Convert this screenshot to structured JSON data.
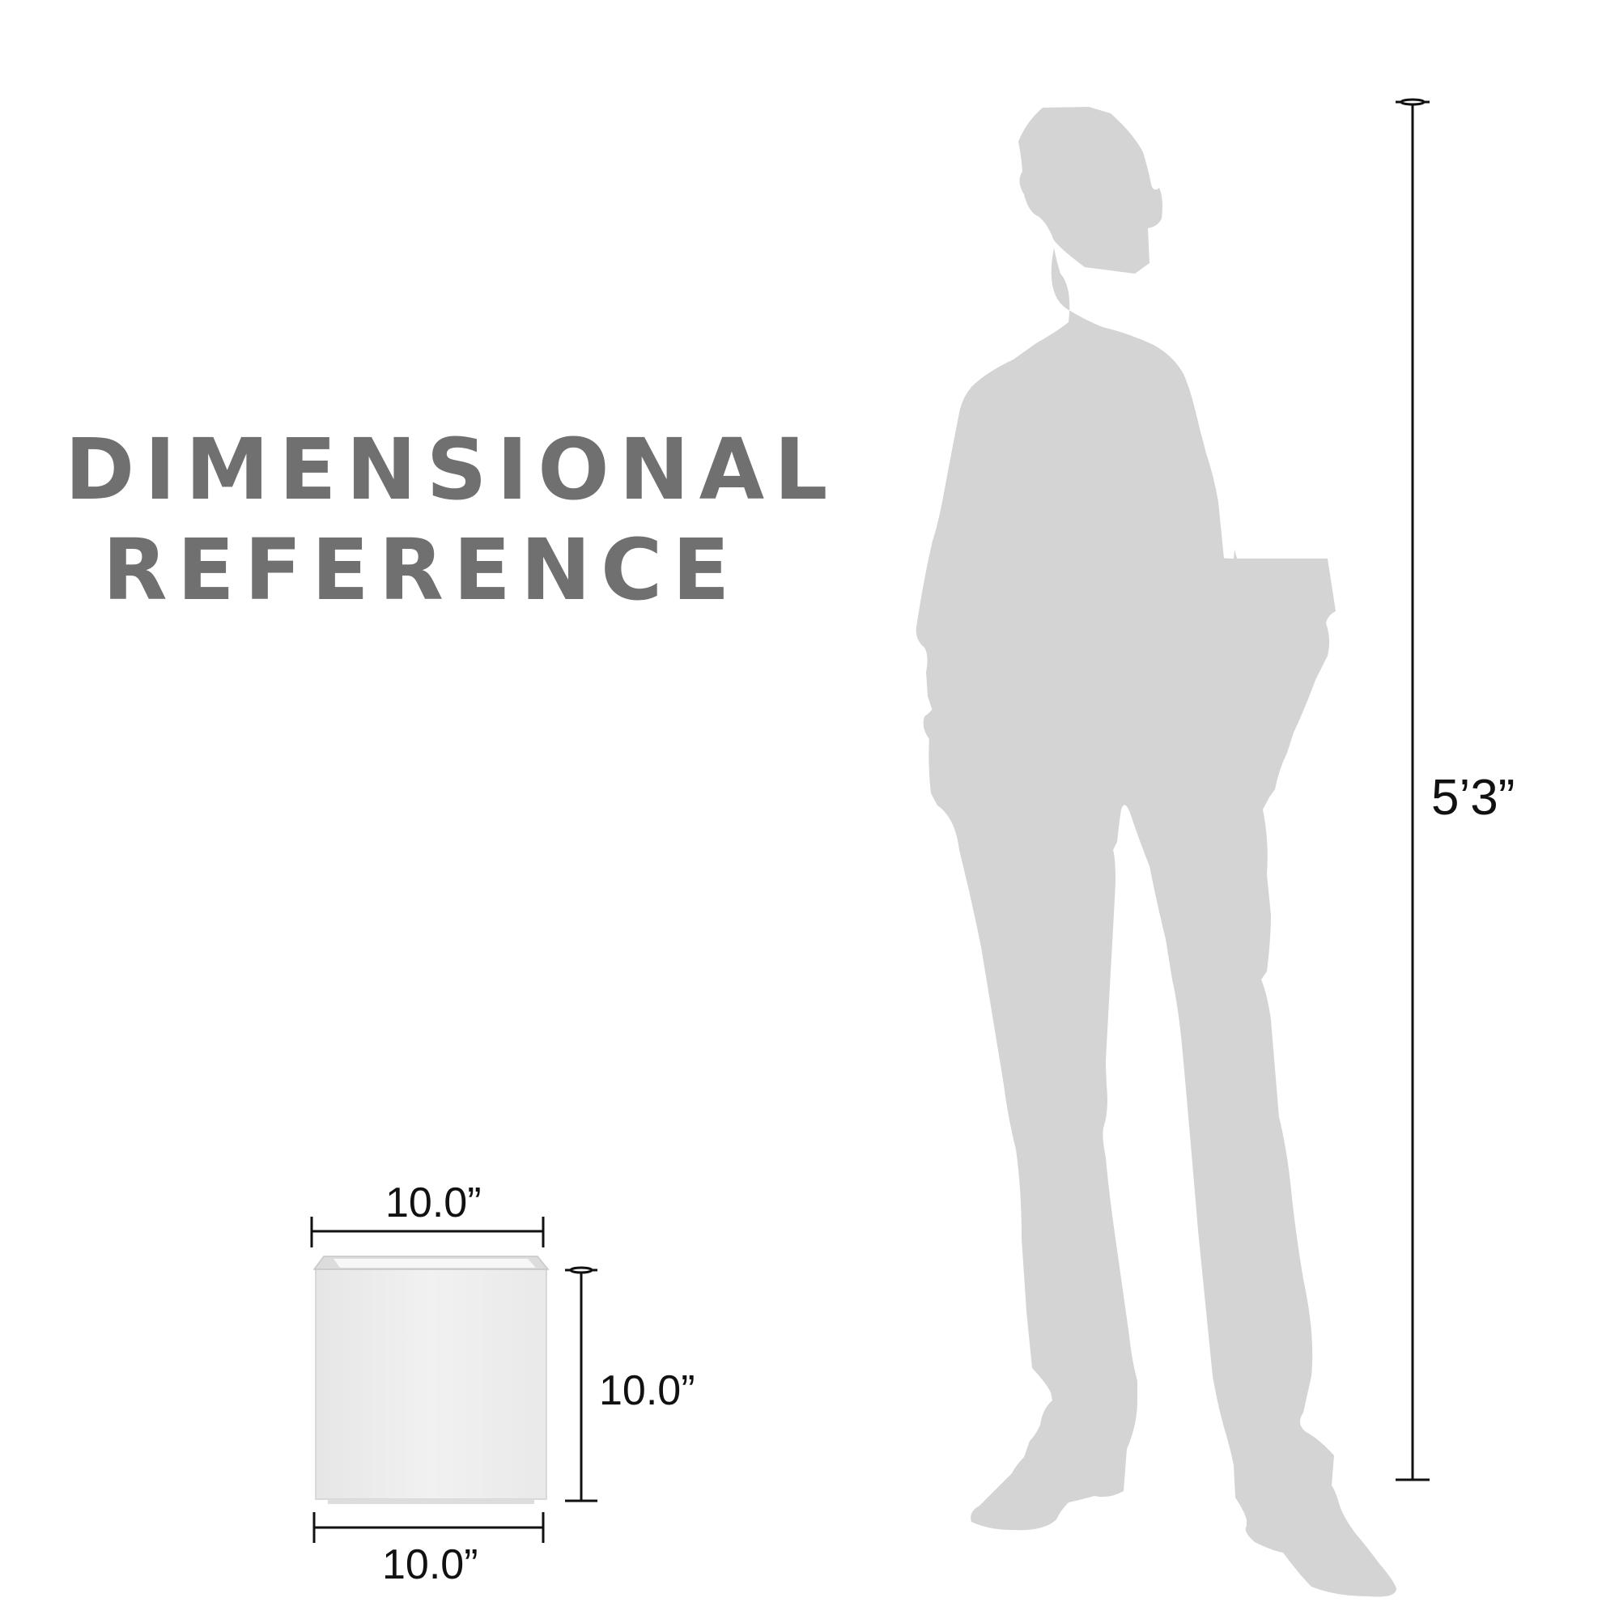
{
  "title": {
    "line1": "DIMENSIONAL",
    "line2": "REFERENCE"
  },
  "dimensions": {
    "person_height": "5’3”",
    "planter_top_width": "10.0”",
    "planter_height": "10.0”",
    "planter_bottom_width": "10.0”"
  },
  "colors": {
    "title": "#707070",
    "silhouette": "#d4d4d4",
    "dimension_lines": "#111111",
    "planter": "#e2e2e2"
  },
  "icons": {
    "person": "person-silhouette-icon",
    "planter": "square-planter-icon"
  }
}
